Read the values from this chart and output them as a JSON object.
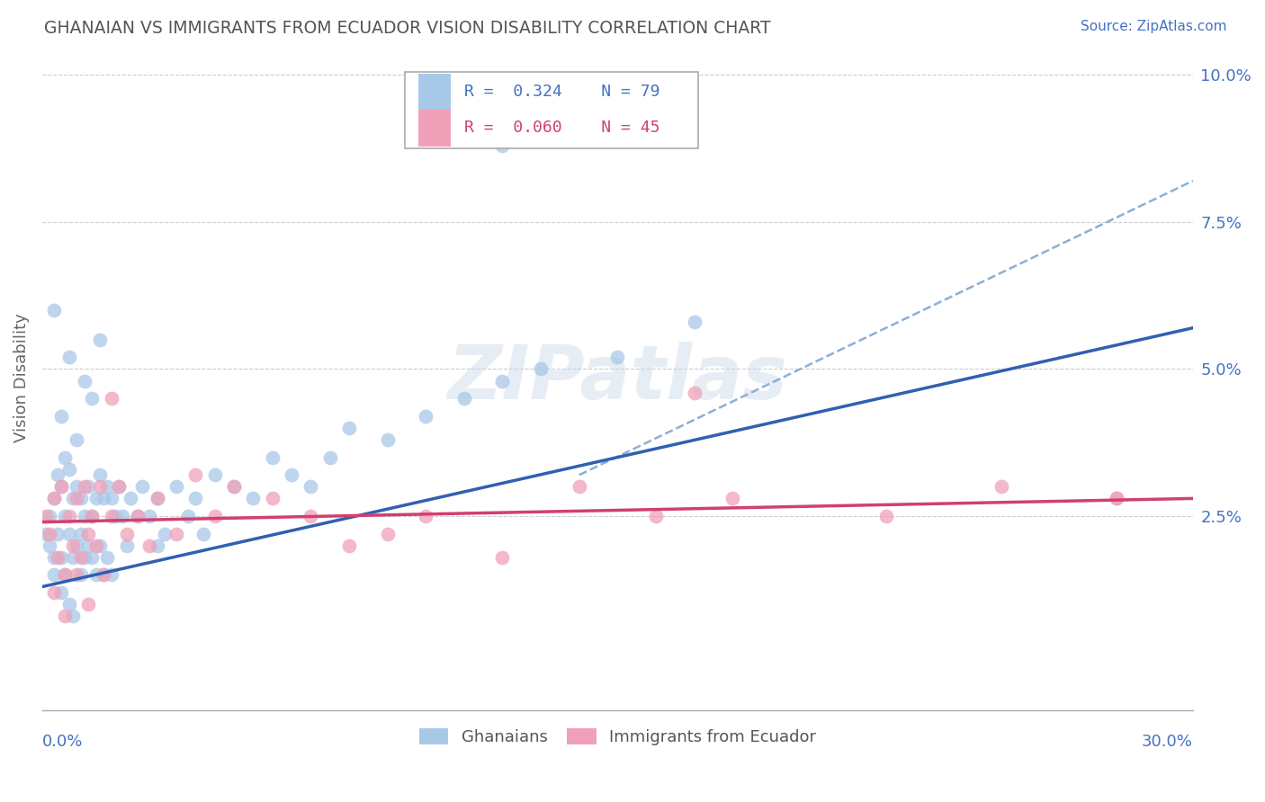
{
  "title": "GHANAIAN VS IMMIGRANTS FROM ECUADOR VISION DISABILITY CORRELATION CHART",
  "source": "Source: ZipAtlas.com",
  "ylabel": "Vision Disability",
  "xlim": [
    0.0,
    0.3
  ],
  "ylim": [
    -0.008,
    0.105
  ],
  "color_blue": "#a8c8e8",
  "color_blue_line": "#3060b0",
  "color_pink": "#f0a0b8",
  "color_pink_line": "#d04070",
  "color_dashed": "#8ab0d8",
  "watermark": "ZIPatlas",
  "ghana_x": [
    0.001,
    0.002,
    0.002,
    0.003,
    0.003,
    0.003,
    0.004,
    0.004,
    0.005,
    0.005,
    0.005,
    0.006,
    0.006,
    0.006,
    0.007,
    0.007,
    0.007,
    0.008,
    0.008,
    0.008,
    0.009,
    0.009,
    0.01,
    0.01,
    0.01,
    0.011,
    0.011,
    0.012,
    0.012,
    0.013,
    0.013,
    0.014,
    0.014,
    0.015,
    0.015,
    0.016,
    0.016,
    0.017,
    0.017,
    0.018,
    0.018,
    0.019,
    0.02,
    0.021,
    0.022,
    0.023,
    0.025,
    0.026,
    0.028,
    0.03,
    0.032,
    0.035,
    0.038,
    0.04,
    0.042,
    0.045,
    0.05,
    0.055,
    0.06,
    0.065,
    0.07,
    0.075,
    0.08,
    0.09,
    0.1,
    0.11,
    0.12,
    0.13,
    0.15,
    0.17,
    0.003,
    0.005,
    0.007,
    0.009,
    0.011,
    0.013,
    0.015,
    0.12,
    0.03
  ],
  "ghana_y": [
    0.022,
    0.025,
    0.02,
    0.028,
    0.018,
    0.015,
    0.032,
    0.022,
    0.03,
    0.018,
    0.012,
    0.035,
    0.025,
    0.015,
    0.033,
    0.022,
    0.01,
    0.028,
    0.018,
    0.008,
    0.03,
    0.02,
    0.028,
    0.022,
    0.015,
    0.025,
    0.018,
    0.03,
    0.02,
    0.025,
    0.018,
    0.028,
    0.015,
    0.032,
    0.02,
    0.028,
    0.015,
    0.03,
    0.018,
    0.028,
    0.015,
    0.025,
    0.03,
    0.025,
    0.02,
    0.028,
    0.025,
    0.03,
    0.025,
    0.028,
    0.022,
    0.03,
    0.025,
    0.028,
    0.022,
    0.032,
    0.03,
    0.028,
    0.035,
    0.032,
    0.03,
    0.035,
    0.04,
    0.038,
    0.042,
    0.045,
    0.048,
    0.05,
    0.052,
    0.058,
    0.06,
    0.042,
    0.052,
    0.038,
    0.048,
    0.045,
    0.055,
    0.088,
    0.02
  ],
  "ecuador_x": [
    0.001,
    0.002,
    0.003,
    0.004,
    0.005,
    0.006,
    0.007,
    0.008,
    0.009,
    0.01,
    0.011,
    0.012,
    0.013,
    0.014,
    0.015,
    0.016,
    0.018,
    0.02,
    0.022,
    0.025,
    0.028,
    0.03,
    0.035,
    0.04,
    0.045,
    0.05,
    0.06,
    0.07,
    0.08,
    0.09,
    0.1,
    0.12,
    0.14,
    0.16,
    0.18,
    0.22,
    0.25,
    0.28,
    0.003,
    0.006,
    0.009,
    0.012,
    0.018,
    0.17,
    0.28
  ],
  "ecuador_y": [
    0.025,
    0.022,
    0.028,
    0.018,
    0.03,
    0.015,
    0.025,
    0.02,
    0.028,
    0.018,
    0.03,
    0.022,
    0.025,
    0.02,
    0.03,
    0.015,
    0.025,
    0.03,
    0.022,
    0.025,
    0.02,
    0.028,
    0.022,
    0.032,
    0.025,
    0.03,
    0.028,
    0.025,
    0.02,
    0.022,
    0.025,
    0.018,
    0.03,
    0.025,
    0.028,
    0.025,
    0.03,
    0.028,
    0.012,
    0.008,
    0.015,
    0.01,
    0.045,
    0.046,
    0.028
  ],
  "blue_line_x": [
    0.0,
    0.3
  ],
  "blue_line_y": [
    0.013,
    0.057
  ],
  "pink_line_x": [
    0.0,
    0.3
  ],
  "pink_line_y": [
    0.024,
    0.028
  ],
  "dash_line_x": [
    0.14,
    0.3
  ],
  "dash_line_y": [
    0.032,
    0.082
  ]
}
